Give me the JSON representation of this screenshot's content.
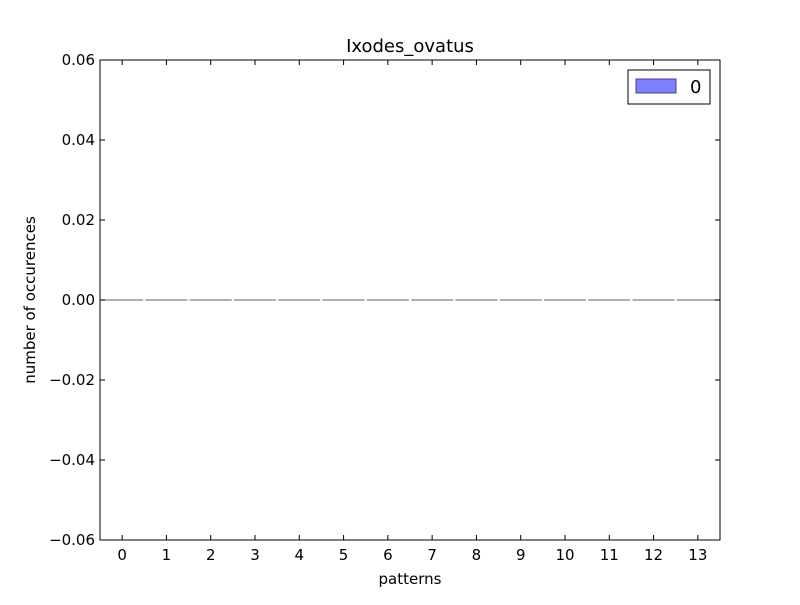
{
  "chart_data": {
    "type": "bar",
    "title": "Ixodes_ovatus",
    "xlabel": "patterns",
    "ylabel": "number of occurences",
    "categories": [
      "0",
      "1",
      "2",
      "3",
      "4",
      "5",
      "6",
      "7",
      "8",
      "9",
      "10",
      "11",
      "12",
      "13"
    ],
    "series": [
      {
        "name": "0",
        "values": [
          0,
          0,
          0,
          0,
          0,
          0,
          0,
          0,
          0,
          0,
          0,
          0,
          0,
          0
        ],
        "color": "#8080ff"
      }
    ],
    "ylim": [
      -0.06,
      0.06
    ],
    "yticks": [
      "0.06",
      "0.04",
      "0.02",
      "0.00",
      "−0.02",
      "−0.04",
      "−0.06"
    ],
    "ytick_values": [
      0.06,
      0.04,
      0.02,
      0.0,
      -0.02,
      -0.04,
      -0.06
    ],
    "grid": false,
    "legend_position": "top-right"
  }
}
